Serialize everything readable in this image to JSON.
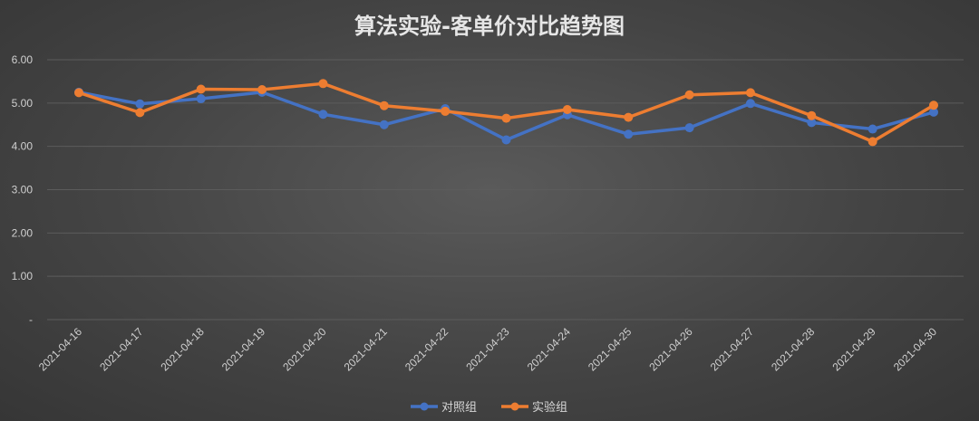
{
  "chart_data": {
    "type": "line",
    "title": "算法实验-客单价对比趋势图",
    "xlabel": "",
    "ylabel": "",
    "categories": [
      "2021-04-16",
      "2021-04-17",
      "2021-04-18",
      "2021-04-19",
      "2021-04-20",
      "2021-04-21",
      "2021-04-22",
      "2021-04-23",
      "2021-04-24",
      "2021-04-25",
      "2021-04-26",
      "2021-04-27",
      "2021-04-28",
      "2021-04-29",
      "2021-04-30"
    ],
    "y_tick_labels": [
      "-",
      "1.00",
      "2.00",
      "3.00",
      "4.00",
      "5.00",
      "6.00"
    ],
    "y_tick_values": [
      0,
      1,
      2,
      3,
      4,
      5,
      6
    ],
    "ylim": [
      0,
      6
    ],
    "grid": true,
    "legend_position": "bottom",
    "series": [
      {
        "name": "对照组",
        "color": "#4472c4",
        "values": [
          5.25,
          4.98,
          5.1,
          5.25,
          4.74,
          4.5,
          4.87,
          4.15,
          4.73,
          4.28,
          4.43,
          4.99,
          4.55,
          4.4,
          4.79
        ]
      },
      {
        "name": "实验组",
        "color": "#ed7d31",
        "values": [
          5.24,
          4.78,
          5.32,
          5.31,
          5.45,
          4.94,
          4.81,
          4.65,
          4.85,
          4.67,
          5.19,
          5.24,
          4.71,
          4.11,
          4.95
        ]
      }
    ]
  }
}
